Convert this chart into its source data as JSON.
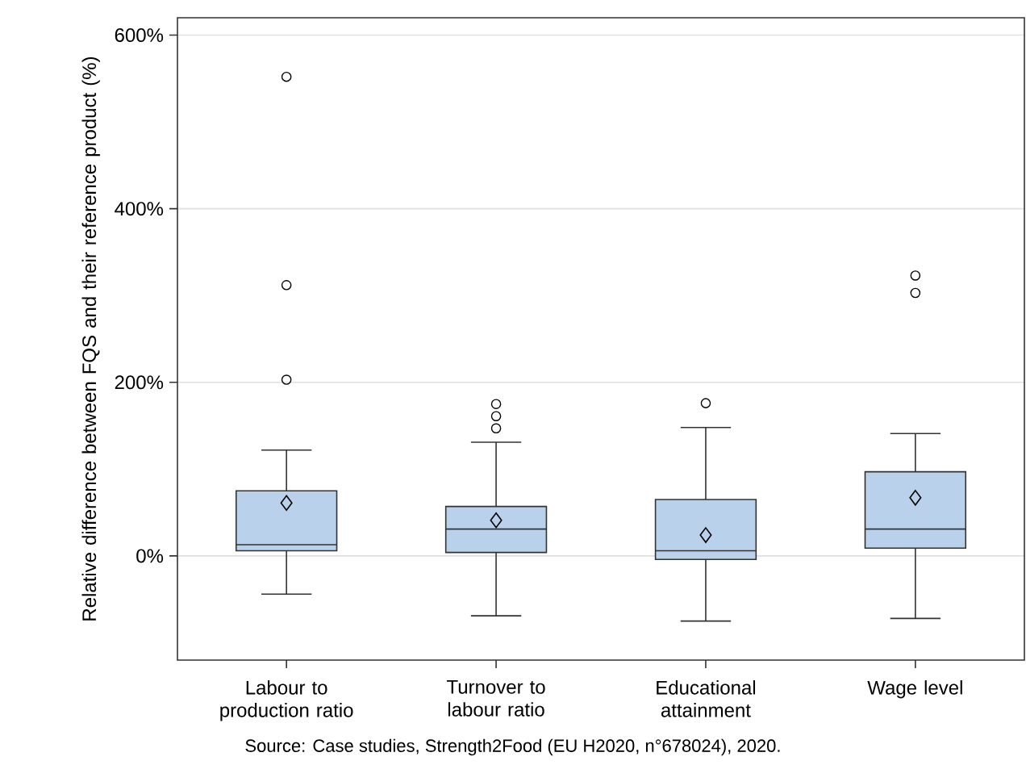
{
  "chart_data": {
    "type": "box",
    "categories": [
      "Labour to production ratio",
      "Turnover to labour ratio",
      "Educational attainment",
      "Wage level"
    ],
    "boxes": [
      {
        "low": -44,
        "q1": 6,
        "median": 13,
        "q3": 75,
        "high": 122,
        "mean": 61,
        "outliers": [
          552,
          312,
          203
        ]
      },
      {
        "low": -69,
        "q1": 4,
        "median": 31,
        "q3": 57,
        "high": 131,
        "mean": 41,
        "outliers": [
          175,
          161,
          147
        ]
      },
      {
        "low": -75,
        "q1": -4,
        "median": 6,
        "q3": 65,
        "high": 148,
        "mean": 24,
        "outliers": [
          176
        ]
      },
      {
        "low": -72,
        "q1": 9,
        "median": 31,
        "q3": 97,
        "high": 141,
        "mean": 67,
        "outliers": [
          323,
          303
        ]
      }
    ],
    "color": "#b9d1ea",
    "ylabel": "Relative difference between FQS and their reference product (%)",
    "ylim": [
      -120,
      620
    ],
    "yticks": [
      {
        "value": 0,
        "label": "0%"
      },
      {
        "value": 200,
        "label": "200%"
      },
      {
        "value": 400,
        "label": "400%"
      },
      {
        "value": 600,
        "label": "600%"
      }
    ],
    "grid": "y",
    "annotations": [
      "Source: Case studies, Strength2Food (EU H2020, n°678024), 2020."
    ]
  }
}
